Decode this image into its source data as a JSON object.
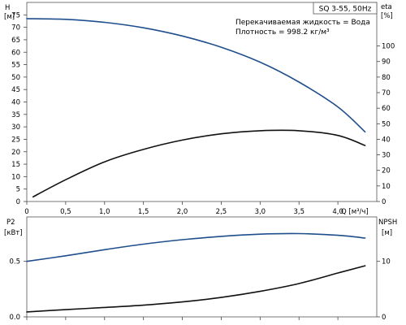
{
  "title_box": "SQ 3-55, 50Hz",
  "notes": {
    "liquid": "Перекачиваемая жидкость = Вода",
    "density": "Плотность = 998.2 кг/м³"
  },
  "colors": {
    "head_curve": "#1f4e8c",
    "efficiency_curve": "#111111",
    "power_curve": "#1f4e8c",
    "npsh_curve": "#111111",
    "frame": "#555555"
  },
  "chart_data": [
    {
      "type": "line",
      "panel": "top",
      "xlabel": "Q [м³/ч]",
      "ylabel_left": "H [м]",
      "ylabel_right": "eta [%]",
      "xlim": [
        0,
        4.5
      ],
      "ylim_left": [
        0,
        80
      ],
      "ylim_right": [
        0,
        128
      ],
      "x_ticks": [
        "0",
        "0,5",
        "1,0",
        "1,5",
        "2,0",
        "2,5",
        "3,0",
        "3,5",
        "4,0"
      ],
      "x_tick_values": [
        0,
        0.5,
        1.0,
        1.5,
        2.0,
        2.5,
        3.0,
        3.5,
        4.0
      ],
      "y_ticks_left": [
        "0",
        "5",
        "10",
        "15",
        "20",
        "25",
        "30",
        "35",
        "40",
        "45",
        "50",
        "55",
        "60",
        "65",
        "70",
        "75"
      ],
      "y_tick_values_left": [
        0,
        5,
        10,
        15,
        20,
        25,
        30,
        35,
        40,
        45,
        50,
        55,
        60,
        65,
        70,
        75
      ],
      "y_ticks_right": [
        "0",
        "10",
        "20",
        "30",
        "40",
        "50",
        "60",
        "70",
        "80",
        "90",
        "100"
      ],
      "y_tick_values_right": [
        0,
        10,
        20,
        30,
        40,
        50,
        60,
        70,
        80,
        90,
        100
      ],
      "grid": false,
      "series": [
        {
          "key": "head",
          "axis": "left",
          "x": [
            0,
            0.5,
            1.0,
            1.5,
            2.0,
            2.5,
            3.0,
            3.5,
            4.0,
            4.35
          ],
          "y": [
            73.5,
            73.2,
            72.0,
            69.8,
            66.5,
            62.0,
            56.0,
            48.0,
            38.0,
            28.0
          ]
        },
        {
          "key": "efficiency",
          "axis": "right",
          "x": [
            0.08,
            0.5,
            1.0,
            1.5,
            2.0,
            2.5,
            3.0,
            3.5,
            4.0,
            4.35
          ],
          "y": [
            3,
            14,
            25.5,
            33.5,
            39.5,
            43.5,
            45.5,
            45.5,
            42.5,
            36
          ]
        }
      ]
    },
    {
      "type": "line",
      "panel": "bottom",
      "xlabel": "",
      "ylabel_left": "P2 [кВт]",
      "ylabel_right": "NPSH [м]",
      "xlim": [
        0,
        4.5
      ],
      "ylim_left": [
        0,
        0.9
      ],
      "ylim_right": [
        0,
        18
      ],
      "y_ticks_left": [
        "0.0",
        "0.5"
      ],
      "y_tick_values_left": [
        0,
        0.5
      ],
      "y_ticks_right": [
        "0",
        "10"
      ],
      "y_tick_values_right": [
        0,
        10
      ],
      "grid": false,
      "series": [
        {
          "key": "power",
          "axis": "left",
          "x": [
            0,
            0.5,
            1.0,
            1.5,
            2.0,
            2.5,
            3.0,
            3.5,
            4.0,
            4.35
          ],
          "y": [
            0.5,
            0.55,
            0.605,
            0.655,
            0.695,
            0.725,
            0.745,
            0.75,
            0.735,
            0.71
          ]
        },
        {
          "key": "npsh",
          "axis": "right",
          "x": [
            0,
            0.5,
            1.0,
            1.5,
            2.0,
            2.5,
            3.0,
            3.5,
            4.0,
            4.35
          ],
          "y": [
            0.9,
            1.3,
            1.7,
            2.1,
            2.7,
            3.5,
            4.6,
            6.0,
            7.9,
            9.2
          ]
        }
      ]
    }
  ]
}
